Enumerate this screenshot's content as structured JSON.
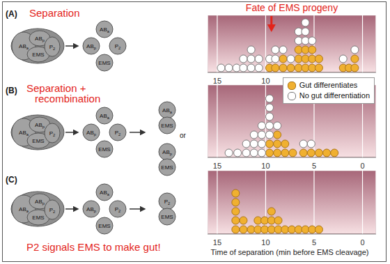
{
  "chart_data": [
    {
      "type": "scatter",
      "title": "Fate of EMS progeny",
      "xlim": [
        16,
        -1.4
      ],
      "xticks": [
        15,
        10,
        5,
        0
      ],
      "ylim": [
        0.5,
        6.8
      ],
      "grid": true,
      "tick_labels": "x",
      "arrow": {
        "x": 9.4
      },
      "diagram": {
        "label": "(A)",
        "caption": [
          "Separation"
        ],
        "embryo": [
          {
            "text": "AB",
            "sub": "a"
          },
          {
            "text": "AB",
            "sub": "p"
          },
          {
            "text": "EMS"
          },
          {
            "text": "P",
            "sub": "2"
          }
        ],
        "separated": [
          {
            "text": "AB",
            "sub": "a"
          },
          {
            "text": "AB",
            "sub": "p"
          },
          {
            "text": "P",
            "sub": "2"
          },
          {
            "text": "EMS"
          }
        ],
        "recombined": []
      },
      "series": [
        {
          "name": "Gut differentiates",
          "color": "#f0b030",
          "marker": "circle",
          "x": [
            9.6,
            9.0,
            8.2,
            8.2,
            7.4,
            6.6,
            6.6,
            6.6,
            5.9,
            5.9,
            5.9,
            5.2,
            5.2,
            5.2,
            4.5,
            4.5,
            2.0,
            1.4,
            0.8,
            0.8
          ],
          "values": [
            1,
            1,
            1,
            2,
            1,
            1,
            2,
            3,
            1,
            2,
            3,
            1,
            2,
            3,
            1,
            2,
            1,
            1,
            1,
            2
          ]
        },
        {
          "name": "No gut differentiation",
          "color": "#ffffff",
          "marker": "circle",
          "x": [
            14.6,
            13.8,
            13.0,
            12.3,
            12.3,
            11.5,
            11.5,
            11.5,
            10.7,
            10.7,
            9.6,
            9.0,
            9.0,
            8.2,
            7.4,
            6.6,
            6.6,
            5.9,
            5.9,
            5.9,
            5.2,
            2.0,
            0.8
          ],
          "values": [
            1,
            1,
            1,
            1,
            2,
            1,
            2,
            3,
            1,
            2,
            2,
            2,
            3,
            3,
            2,
            4,
            5,
            4,
            5,
            6,
            4,
            2,
            3
          ]
        }
      ]
    },
    {
      "type": "scatter",
      "xlim": [
        16,
        -1.4
      ],
      "xticks": [
        15,
        10,
        5,
        0
      ],
      "ylim": [
        0.5,
        8.5
      ],
      "grid": true,
      "tick_labels": "x",
      "legend": "upper right",
      "diagram": {
        "label": "(B)",
        "caption": [
          "Separation +",
          "recombination"
        ],
        "connector": "or",
        "embryo": [
          {
            "text": "AB",
            "sub": "a"
          },
          {
            "text": "AB",
            "sub": "p"
          },
          {
            "text": "EMS"
          },
          {
            "text": "P",
            "sub": "2"
          }
        ],
        "separated": [
          {
            "text": "AB",
            "sub": "a"
          },
          {
            "text": "AB",
            "sub": "p"
          },
          {
            "text": "P",
            "sub": "2"
          },
          {
            "text": "EMS"
          }
        ],
        "recombined": [
          [
            {
              "text": "AB",
              "sub": "a"
            },
            {
              "text": "EMS"
            }
          ],
          [
            {
              "text": "AB",
              "sub": "p"
            },
            {
              "text": "EMS"
            }
          ]
        ]
      },
      "series": [
        {
          "name": "Gut differentiates",
          "color": "#f0b030",
          "marker": "circle",
          "x": [
            9.6,
            9.6,
            8.8,
            8.8,
            8.8,
            8.0,
            8.0,
            7.2,
            6.1,
            5.3,
            4.5,
            3.7,
            2.9
          ],
          "values": [
            1,
            2,
            1,
            2,
            3,
            1,
            2,
            1,
            1,
            1,
            1,
            1,
            1
          ]
        },
        {
          "name": "No gut differentiation",
          "color": "#ffffff",
          "marker": "circle",
          "x": [
            13.8,
            12.9,
            12.0,
            12.0,
            11.2,
            11.2,
            11.2,
            10.4,
            10.4,
            10.4,
            10.4,
            9.6,
            9.6,
            9.6,
            9.6,
            9.6,
            8.8,
            6.1,
            5.3
          ],
          "values": [
            1,
            1,
            1,
            2,
            1,
            2,
            3,
            1,
            2,
            3,
            4,
            3,
            4,
            5,
            6,
            7,
            4,
            2,
            2
          ]
        }
      ]
    },
    {
      "type": "scatter",
      "x_label": "Time of separation (min before EMS cleavage)",
      "xlim": [
        16,
        -1.4
      ],
      "xticks": [
        15,
        10,
        5,
        0
      ],
      "ylim": [
        0.5,
        7.5
      ],
      "grid": true,
      "tick_labels": "x",
      "diagram": {
        "label": "(C)",
        "caption": [
          "P2 signals EMS to make gut!"
        ],
        "embryo": [
          {
            "text": "AB",
            "sub": "a"
          },
          {
            "text": "AB",
            "sub": "p"
          },
          {
            "text": "EMS"
          },
          {
            "text": "P",
            "sub": "2"
          }
        ],
        "separated": [
          {
            "text": "AB",
            "sub": "a"
          },
          {
            "text": "AB",
            "sub": "p"
          },
          {
            "text": "P",
            "sub": "2"
          },
          {
            "text": "EMS"
          }
        ],
        "recombined": [
          [
            {
              "text": "P",
              "sub": "2"
            },
            {
              "text": "EMS"
            }
          ]
        ]
      },
      "series": [
        {
          "name": "Gut differentiates",
          "color": "#f0b030",
          "marker": "circle",
          "x": [
            13.1,
            13.1,
            13.1,
            13.1,
            13.1,
            12.3,
            12.3,
            11.5,
            10.8,
            10.8,
            10.1,
            10.1,
            9.4,
            9.4,
            9.4,
            8.7,
            8.7,
            8.0,
            7.3,
            6.6,
            5.9,
            5.2,
            4.5
          ],
          "values": [
            1,
            2,
            3,
            4,
            5,
            1,
            2,
            1,
            1,
            2,
            1,
            2,
            1,
            2,
            3,
            1,
            2,
            1,
            1,
            1,
            1,
            1,
            1
          ]
        }
      ]
    }
  ]
}
